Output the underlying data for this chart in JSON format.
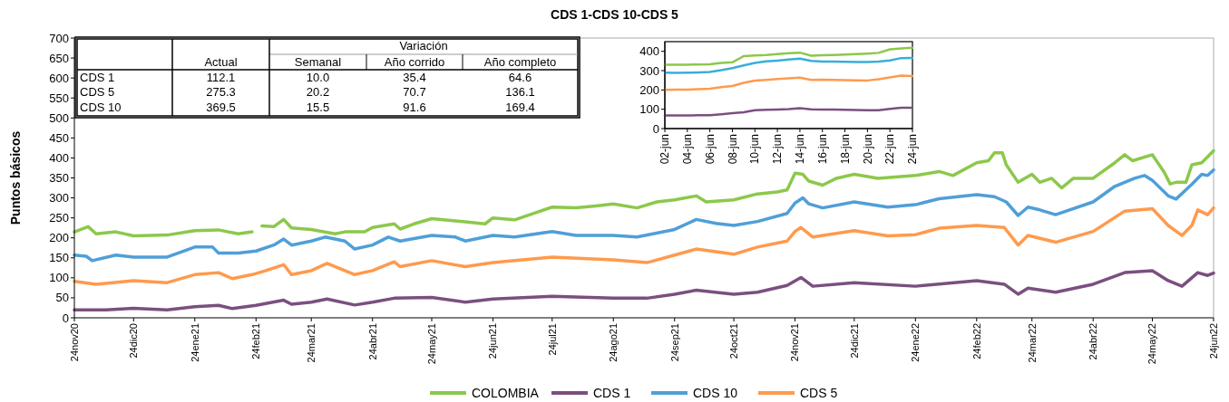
{
  "chart_data": [
    {
      "type": "line",
      "title": "CDS 1-CDS 10-CDS 5",
      "ylabel": "Puntos básicos",
      "ylim": [
        0,
        700
      ],
      "yticks": [
        0,
        50,
        100,
        150,
        200,
        250,
        300,
        350,
        400,
        450,
        500,
        550,
        600,
        650,
        700
      ],
      "xlim": [
        "2020-11-24",
        "2022-06-24"
      ],
      "xticks": [
        {
          "value": "2020-11-24",
          "label": "24nov20"
        },
        {
          "value": "2020-12-24",
          "label": "24dic20"
        },
        {
          "value": "2021-01-24",
          "label": "24ene21"
        },
        {
          "value": "2021-02-24",
          "label": "24feb21"
        },
        {
          "value": "2021-03-24",
          "label": "24mar21"
        },
        {
          "value": "2021-04-24",
          "label": "24abr21"
        },
        {
          "value": "2021-05-24",
          "label": "24may21"
        },
        {
          "value": "2021-06-24",
          "label": "24jun21"
        },
        {
          "value": "2021-07-24",
          "label": "24jul21"
        },
        {
          "value": "2021-08-24",
          "label": "24ago21"
        },
        {
          "value": "2021-09-24",
          "label": "24sep21"
        },
        {
          "value": "2021-10-24",
          "label": "24oct21"
        },
        {
          "value": "2021-11-24",
          "label": "24nov21"
        },
        {
          "value": "2021-12-24",
          "label": "24dic21"
        },
        {
          "value": "2022-01-24",
          "label": "24ene22"
        },
        {
          "value": "2022-02-24",
          "label": "24feb22"
        },
        {
          "value": "2022-03-24",
          "label": "24mar22"
        },
        {
          "value": "2022-04-24",
          "label": "24abr22"
        },
        {
          "value": "2022-05-24",
          "label": "24may22"
        },
        {
          "value": "2022-06-24",
          "label": "24jun22"
        }
      ],
      "legend": "bottom",
      "grid": false,
      "line_style": "solid",
      "series": [
        {
          "name": "COLOMBIA",
          "color": "#8cc84b",
          "x": [
            "2020-11-24",
            "2020-12-01",
            "2020-12-05",
            "2020-12-15",
            "2020-12-24",
            "2021-01-10",
            "2021-01-24",
            "2021-02-05",
            "2021-02-15",
            "2021-02-22",
            "2021-02-25",
            "2021-02-27",
            "2021-03-05",
            "2021-03-10",
            "2021-03-14",
            "2021-03-24",
            "2021-04-05",
            "2021-04-10",
            "2021-04-20",
            "2021-04-24",
            "2021-05-05",
            "2021-05-08",
            "2021-05-15",
            "2021-05-24",
            "2021-06-10",
            "2021-06-20",
            "2021-06-24",
            "2021-07-05",
            "2021-07-15",
            "2021-07-24",
            "2021-08-05",
            "2021-08-15",
            "2021-08-24",
            "2021-09-05",
            "2021-09-15",
            "2021-09-24",
            "2021-10-05",
            "2021-10-10",
            "2021-10-24",
            "2021-11-05",
            "2021-11-15",
            "2021-11-20",
            "2021-11-24",
            "2021-11-28",
            "2021-12-01",
            "2021-12-08",
            "2021-12-15",
            "2021-12-24",
            "2022-01-05",
            "2022-01-24",
            "2022-02-05",
            "2022-02-12",
            "2022-02-24",
            "2022-03-02",
            "2022-03-05",
            "2022-03-09",
            "2022-03-11",
            "2022-03-17",
            "2022-03-24",
            "2022-03-28",
            "2022-04-03",
            "2022-04-08",
            "2022-04-14",
            "2022-04-19",
            "2022-04-24",
            "2022-05-05",
            "2022-05-10",
            "2022-05-14",
            "2022-05-24",
            "2022-05-30",
            "2022-06-02",
            "2022-06-05",
            "2022-06-10",
            "2022-06-13",
            "2022-06-18",
            "2022-06-24"
          ],
          "values": [
            215,
            228,
            210,
            215,
            205,
            207,
            218,
            220,
            210,
            215,
            null,
            230,
            228,
            246,
            225,
            221,
            210,
            215,
            215,
            226,
            235,
            222,
            235,
            248,
            240,
            235,
            250,
            245,
            262,
            277,
            275,
            280,
            285,
            275,
            290,
            295,
            305,
            290,
            295,
            310,
            315,
            320,
            362,
            359,
            342,
            332,
            349,
            359,
            349,
            356,
            366,
            356,
            388,
            393,
            413,
            413,
            383,
            339,
            359,
            339,
            349,
            325,
            349,
            349,
            349,
            388,
            408,
            393,
            408,
            364,
            335,
            339,
            339,
            383,
            388,
            418
          ]
        },
        {
          "name": "CDS 1",
          "color": "#7b4f80",
          "x": [
            "2020-11-24",
            "2020-12-10",
            "2020-12-24",
            "2021-01-10",
            "2021-01-24",
            "2021-02-05",
            "2021-02-12",
            "2021-02-24",
            "2021-03-10",
            "2021-03-14",
            "2021-03-24",
            "2021-04-01",
            "2021-04-15",
            "2021-04-24",
            "2021-05-05",
            "2021-05-24",
            "2021-06-10",
            "2021-06-24",
            "2021-07-24",
            "2021-08-24",
            "2021-09-10",
            "2021-09-24",
            "2021-10-05",
            "2021-10-24",
            "2021-11-05",
            "2021-11-20",
            "2021-11-27",
            "2021-12-03",
            "2021-12-24",
            "2022-01-24",
            "2022-02-24",
            "2022-03-10",
            "2022-03-17",
            "2022-03-22",
            "2022-04-05",
            "2022-04-24",
            "2022-05-10",
            "2022-05-24",
            "2022-06-01",
            "2022-06-08",
            "2022-06-16",
            "2022-06-21",
            "2022-06-24"
          ],
          "values": [
            20,
            20,
            24,
            20,
            28,
            31,
            23,
            31,
            44,
            34,
            39,
            47,
            32,
            39,
            49,
            51,
            39,
            47,
            54,
            49,
            49,
            59,
            69,
            59,
            64,
            81,
            101,
            79,
            88,
            79,
            93,
            84,
            59,
            74,
            64,
            84,
            113,
            118,
            93,
            79,
            113,
            106,
            112
          ]
        },
        {
          "name": "CDS 10",
          "color": "#4f9fd8",
          "x": [
            "2020-11-24",
            "2020-11-30",
            "2020-12-03",
            "2020-12-15",
            "2020-12-24",
            "2021-01-10",
            "2021-01-24",
            "2021-02-02",
            "2021-02-05",
            "2021-02-15",
            "2021-02-24",
            "2021-03-05",
            "2021-03-10",
            "2021-03-14",
            "2021-03-24",
            "2021-03-31",
            "2021-04-10",
            "2021-04-15",
            "2021-04-24",
            "2021-05-02",
            "2021-05-08",
            "2021-05-24",
            "2021-06-05",
            "2021-06-10",
            "2021-06-24",
            "2021-07-05",
            "2021-07-24",
            "2021-08-05",
            "2021-08-24",
            "2021-09-05",
            "2021-09-24",
            "2021-10-05",
            "2021-10-15",
            "2021-10-24",
            "2021-11-05",
            "2021-11-20",
            "2021-11-24",
            "2021-11-28",
            "2021-12-01",
            "2021-12-08",
            "2021-12-24",
            "2022-01-10",
            "2022-01-24",
            "2022-02-05",
            "2022-02-24",
            "2022-03-05",
            "2022-03-11",
            "2022-03-17",
            "2022-03-22",
            "2022-03-28",
            "2022-04-05",
            "2022-04-24",
            "2022-05-05",
            "2022-05-15",
            "2022-05-20",
            "2022-05-24",
            "2022-06-01",
            "2022-06-05",
            "2022-06-13",
            "2022-06-18",
            "2022-06-21",
            "2022-06-24"
          ],
          "values": [
            157,
            154,
            143,
            157,
            152,
            152,
            177,
            177,
            162,
            162,
            167,
            182,
            197,
            182,
            192,
            202,
            192,
            172,
            182,
            202,
            192,
            206,
            202,
            192,
            206,
            202,
            216,
            206,
            206,
            202,
            221,
            246,
            236,
            231,
            241,
            261,
            287,
            300,
            285,
            275,
            290,
            277,
            283,
            298,
            308,
            303,
            290,
            256,
            277,
            270,
            258,
            290,
            329,
            349,
            356,
            344,
            305,
            297,
            334,
            359,
            356,
            370
          ]
        },
        {
          "name": "CDS 5",
          "color": "#ff9a4d",
          "x": [
            "2020-11-24",
            "2020-12-05",
            "2020-12-24",
            "2021-01-10",
            "2021-01-24",
            "2021-02-05",
            "2021-02-12",
            "2021-02-22",
            "2021-03-01",
            "2021-03-10",
            "2021-03-14",
            "2021-03-24",
            "2021-04-01",
            "2021-04-15",
            "2021-04-24",
            "2021-05-05",
            "2021-05-08",
            "2021-05-24",
            "2021-06-10",
            "2021-06-24",
            "2021-07-24",
            "2021-08-24",
            "2021-09-10",
            "2021-09-24",
            "2021-10-05",
            "2021-10-24",
            "2021-11-05",
            "2021-11-20",
            "2021-11-24",
            "2021-11-27",
            "2021-12-03",
            "2021-12-24",
            "2022-01-10",
            "2022-01-24",
            "2022-02-05",
            "2022-02-24",
            "2022-03-10",
            "2022-03-17",
            "2022-03-22",
            "2022-04-05",
            "2022-04-24",
            "2022-05-10",
            "2022-05-24",
            "2022-06-01",
            "2022-06-08",
            "2022-06-13",
            "2022-06-16",
            "2022-06-21",
            "2022-06-24"
          ],
          "values": [
            91,
            84,
            93,
            88,
            108,
            113,
            98,
            108,
            118,
            133,
            108,
            118,
            136,
            108,
            118,
            140,
            128,
            143,
            128,
            138,
            152,
            145,
            138,
            157,
            172,
            159,
            177,
            192,
            216,
            226,
            202,
            218,
            205,
            208,
            224,
            231,
            226,
            182,
            206,
            189,
            216,
            267,
            273,
            231,
            206,
            231,
            270,
            258,
            275
          ]
        }
      ]
    },
    {
      "type": "other",
      "categories": [
        "CDS 1",
        "CDS 5",
        "CDS 10"
      ],
      "annotations": [
        "Variación"
      ],
      "series": [
        {
          "name": "Actual",
          "values": [
            112.1,
            275.3,
            369.5
          ],
          "value_labels": [
            "112.1",
            "275.3",
            "369.5"
          ]
        },
        {
          "name": "Semanal",
          "values": [
            10.0,
            20.2,
            15.5
          ],
          "value_labels": [
            "10.0",
            "20.2",
            "15.5"
          ]
        },
        {
          "name": "Año corrido",
          "values": [
            35.4,
            70.7,
            91.6
          ],
          "value_labels": [
            "35.4",
            "70.7",
            "91.6"
          ]
        },
        {
          "name": "Año completo",
          "values": [
            64.6,
            136.1,
            169.4
          ],
          "value_labels": [
            "64.6",
            "136.1",
            "169.4"
          ]
        }
      ]
    },
    {
      "type": "line",
      "ylim": [
        0,
        450
      ],
      "yticks": [
        0,
        100,
        200,
        300,
        400
      ],
      "legend": false,
      "grid": false,
      "categories": [
        "02-jun",
        null,
        "04-jun",
        null,
        "06-jun",
        null,
        "08-jun",
        null,
        "10-jun",
        null,
        "12-jun",
        null,
        "14-jun",
        null,
        "16-jun",
        null,
        "18-jun",
        null,
        "20-jun",
        null,
        "22-jun",
        null,
        "24-jun"
      ],
      "series": [
        {
          "color": "#8cc84b",
          "values": [
            330,
            330,
            331,
            332,
            333,
            340,
            343,
            375,
            378,
            381,
            386,
            390,
            393,
            377,
            380,
            381,
            383,
            385,
            388,
            392,
            410,
            415,
            418
          ]
        },
        {
          "color": "#3aaed8",
          "values": [
            290,
            288,
            289,
            291,
            293,
            302,
            313,
            327,
            340,
            348,
            352,
            357,
            362,
            350,
            347,
            347,
            346,
            345,
            344,
            347,
            353,
            365,
            366
          ]
        },
        {
          "color": "#ff9a4d",
          "values": [
            200,
            201,
            202,
            204,
            206,
            214,
            220,
            237,
            248,
            252,
            257,
            260,
            264,
            252,
            253,
            252,
            251,
            250,
            249,
            255,
            265,
            274,
            272
          ]
        },
        {
          "color": "#7b4f80",
          "values": [
            68,
            68,
            68,
            69,
            69,
            74,
            80,
            84,
            95,
            97,
            99,
            101,
            105,
            100,
            99,
            98,
            97,
            96,
            95,
            95,
            102,
            108,
            108
          ]
        }
      ]
    }
  ]
}
